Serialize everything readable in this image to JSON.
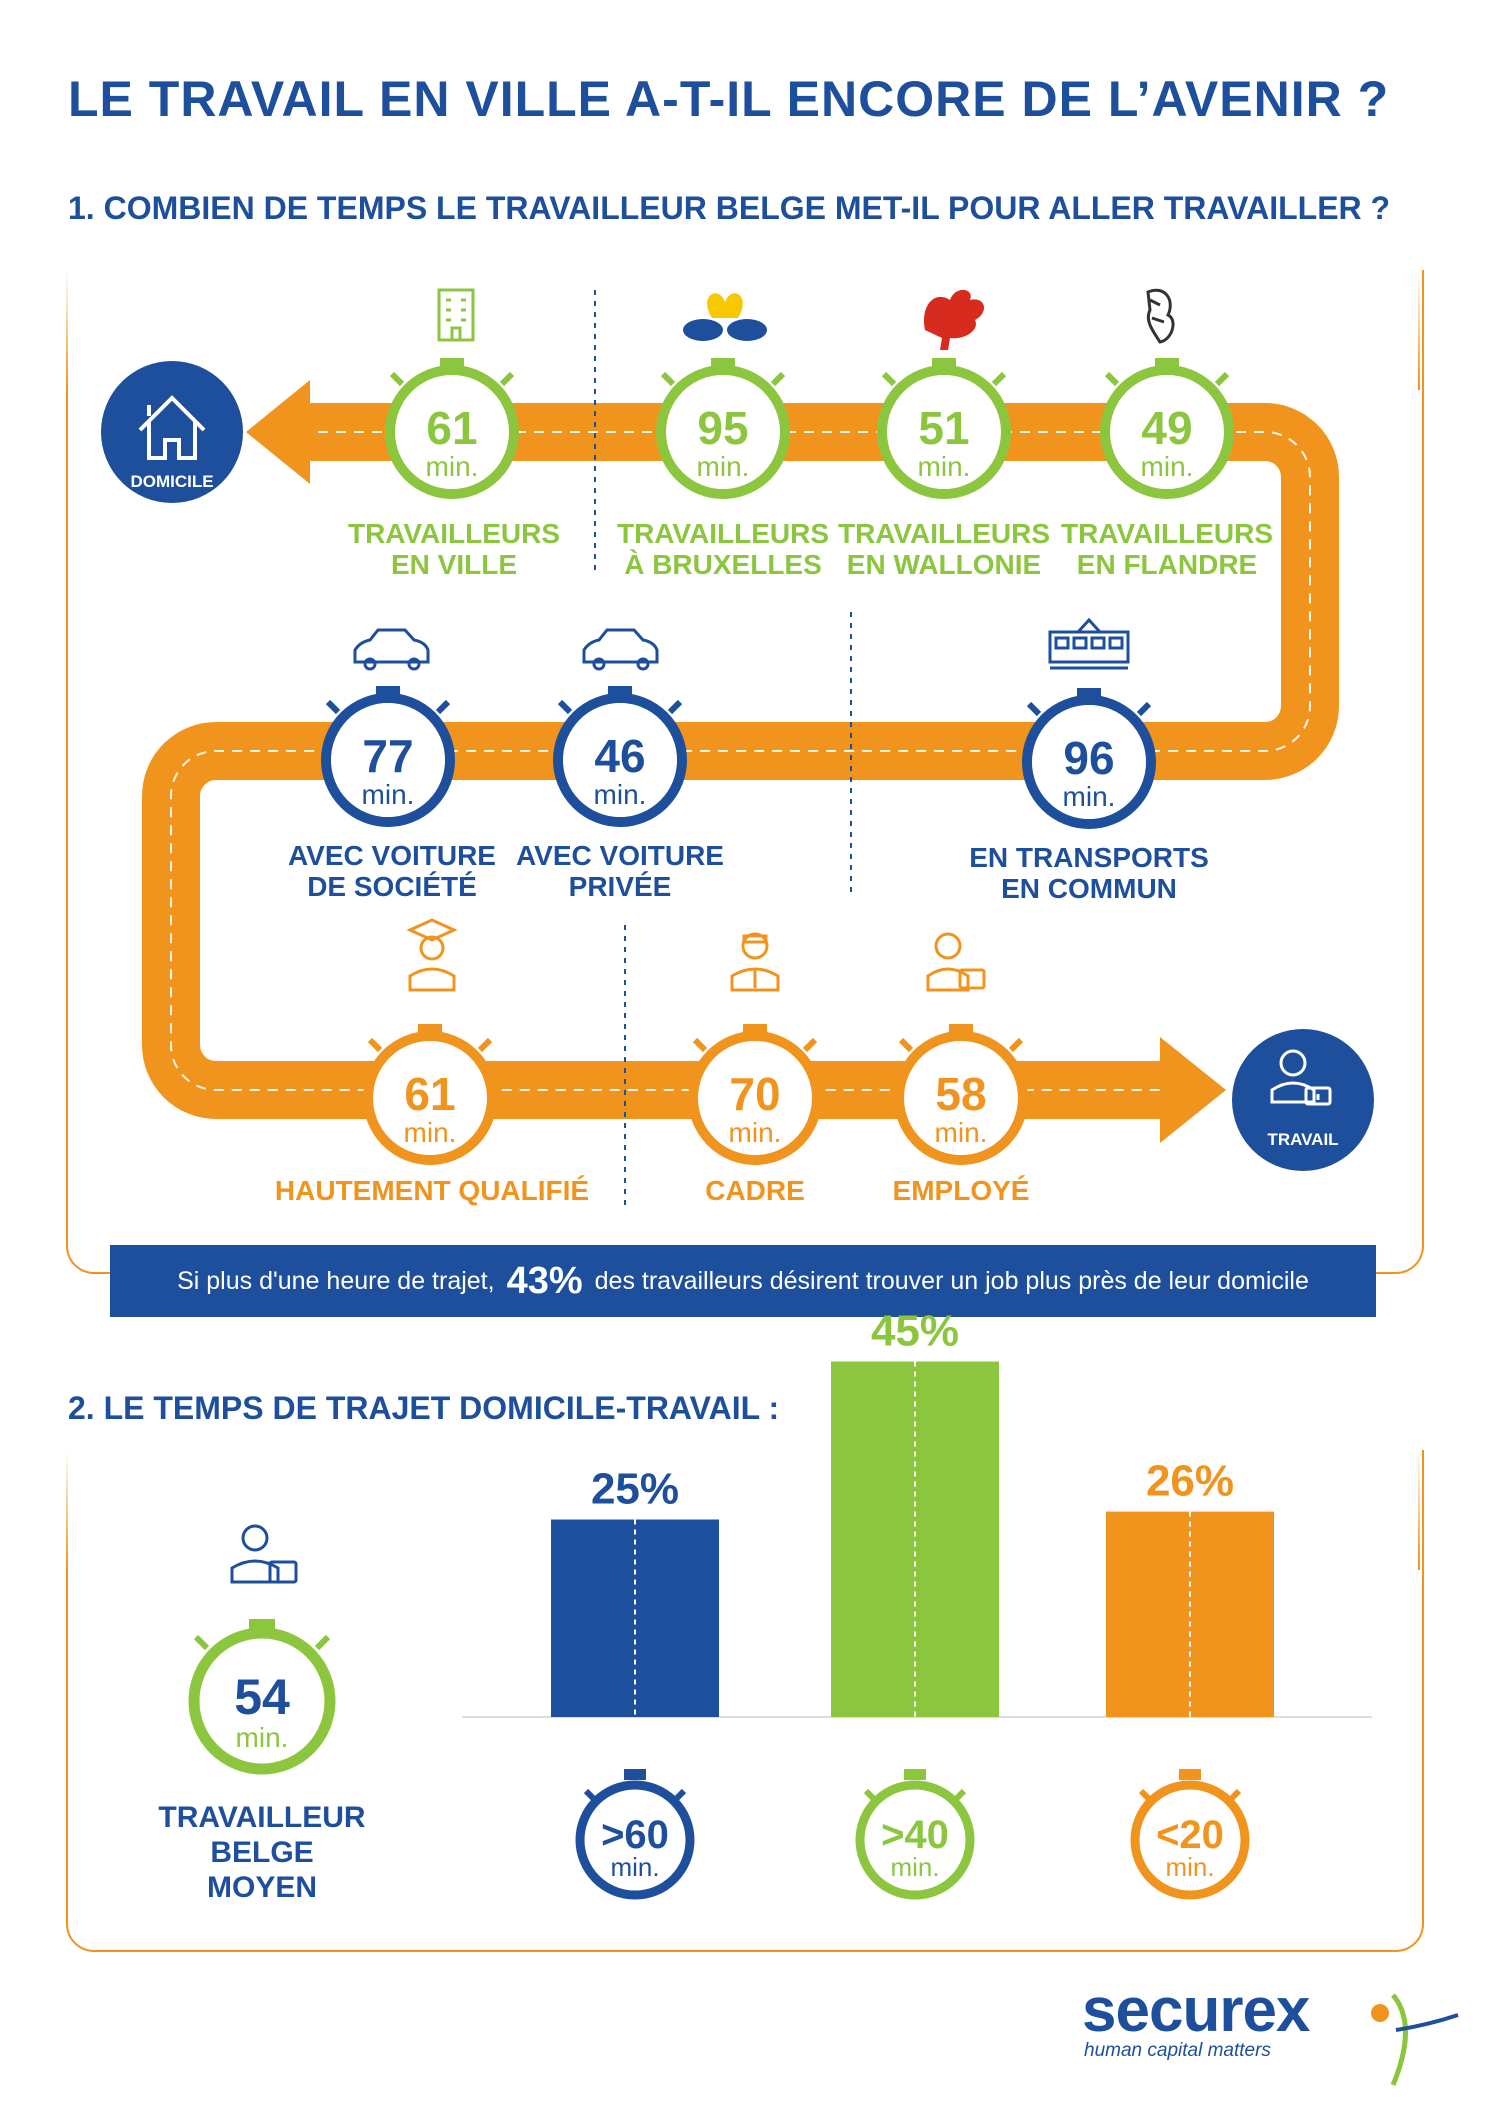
{
  "title": "LE TRAVAIL EN VILLE A-T-IL ENCORE DE L’AVENIR ?",
  "section1": {
    "heading": "1. COMBIEN DE TEMPS LE TRAVAILLEUR BELGE MET-IL POUR ALLER TRAVAILLER ?",
    "start_label": "DOMICILE",
    "end_label": "TRAVAIL",
    "regions": [
      {
        "value": "61",
        "unit": "min.",
        "line1": "TRAVAILLEURS",
        "line2": "EN VILLE",
        "icon": "building-icon",
        "color": "#8cc63f"
      },
      {
        "value": "95",
        "unit": "min.",
        "line1": "TRAVAILLEURS",
        "line2": "À BRUXELLES",
        "icon": "brussels-iris-icon",
        "color": "#8cc63f"
      },
      {
        "value": "51",
        "unit": "min.",
        "line1": "TRAVAILLEURS",
        "line2": "EN WALLONIE",
        "icon": "rooster-icon",
        "color": "#8cc63f"
      },
      {
        "value": "49",
        "unit": "min.",
        "line1": "TRAVAILLEURS",
        "line2": "EN FLANDRE",
        "icon": "lion-icon",
        "color": "#8cc63f"
      }
    ],
    "transport": [
      {
        "value": "77",
        "unit": "min.",
        "line1": "AVEC VOITURE",
        "line2": "DE SOCIÉTÉ",
        "icon": "car-icon",
        "color": "#1d4f9c"
      },
      {
        "value": "46",
        "unit": "min.",
        "line1": "AVEC VOITURE",
        "line2": "PRIVÉE",
        "icon": "car-icon",
        "color": "#1d4f9c"
      },
      {
        "value": "96",
        "unit": "min.",
        "line1": "EN TRANSPORTS",
        "line2": "EN COMMUN",
        "icon": "tram-icon",
        "color": "#1d4f9c"
      }
    ],
    "profiles": [
      {
        "value": "61",
        "unit": "min.",
        "line1": "HAUTEMENT QUALIFIÉ",
        "icon": "graduate-icon",
        "color": "#f0941e"
      },
      {
        "value": "70",
        "unit": "min.",
        "line1": "CADRE",
        "icon": "manager-icon",
        "color": "#f0941e"
      },
      {
        "value": "58",
        "unit": "min.",
        "line1": "EMPLOYÉ",
        "icon": "employee-icon",
        "color": "#f0941e"
      }
    ],
    "banner": {
      "before": "Si plus d'une heure de trajet,",
      "highlight": "43%",
      "after": "des travailleurs désirent trouver un job plus près de leur domicile"
    }
  },
  "section2": {
    "heading": "2. LE TEMPS DE TRAJET DOMICILE-TRAVAIL :",
    "average": {
      "value": "54",
      "unit": "min.",
      "line1": "TRAVAILLEUR",
      "line2": "BELGE",
      "line3": "MOYEN"
    },
    "chart_data": {
      "type": "bar",
      "categories": [
        ">60",
        ">40",
        "<20"
      ],
      "unit": "min.",
      "values": [
        25,
        45,
        26
      ],
      "value_labels": [
        "25%",
        "45%",
        "26%"
      ],
      "colors": [
        "#1d4f9c",
        "#8cc63f",
        "#f0941e"
      ],
      "ylim": [
        0,
        50
      ]
    }
  },
  "logo": {
    "name": "securex",
    "tagline": "human capital matters"
  },
  "colors": {
    "blue": "#1d4f9c",
    "green": "#8cc63f",
    "orange": "#f0941e"
  }
}
